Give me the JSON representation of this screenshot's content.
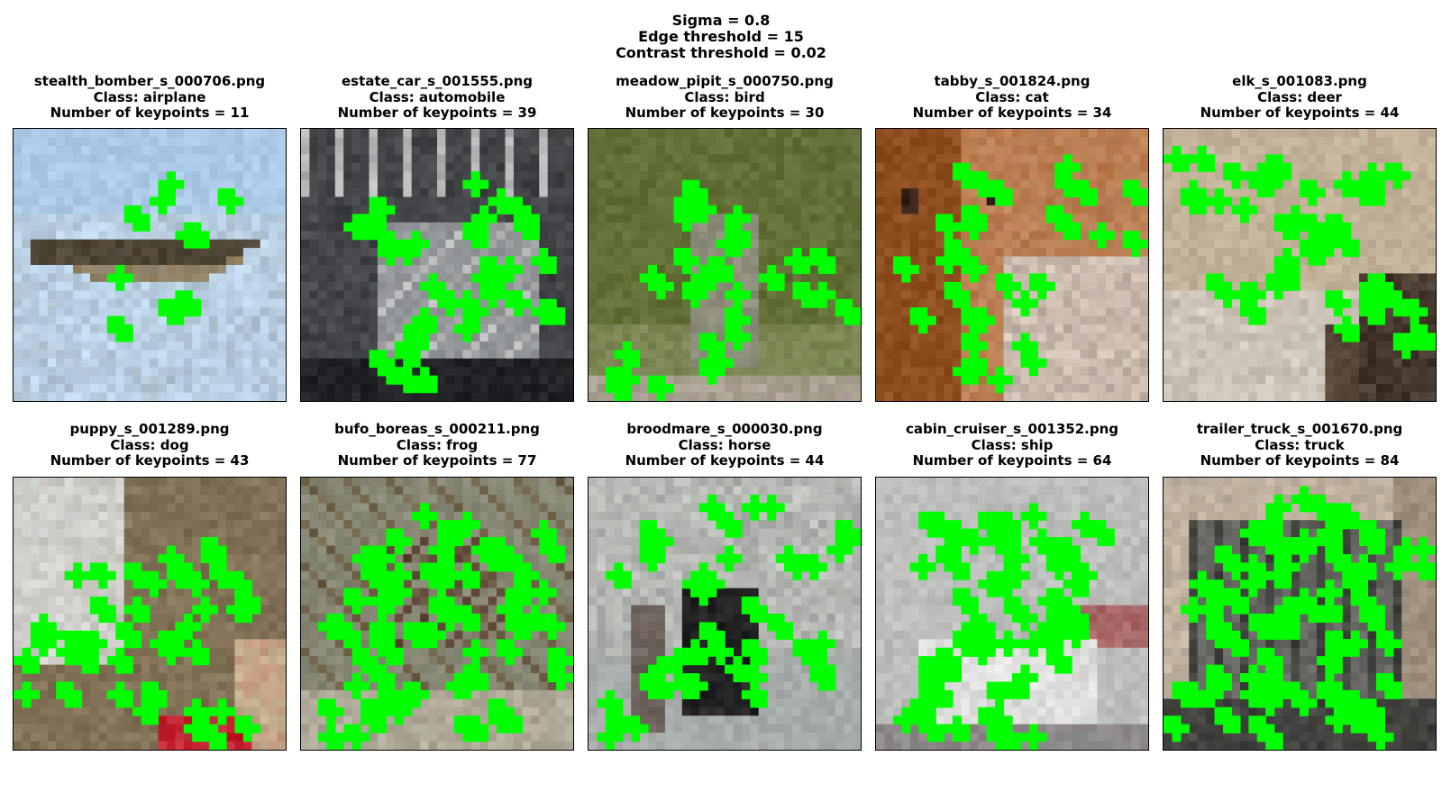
{
  "figure": {
    "sigma_label": "Sigma = 0.8",
    "edge_label": "Edge threshold = 15",
    "contrast_label": "Contrast threshold = 0.02"
  },
  "keypoint_color": "#00ff00",
  "panels": [
    {
      "filename": "stealth_bomber_s_000706.png",
      "class_label": "Class: airplane",
      "keypoints_label": "Number of keypoints = 11",
      "keypoints": 11,
      "scene": "airplane",
      "colors": [
        "#a9c8e6",
        "#c2dbf1",
        "#4a4134",
        "#8c7a58"
      ]
    },
    {
      "filename": "estate_car_s_001555.png",
      "class_label": "Class: automobile",
      "keypoints_label": "Number of keypoints = 39",
      "keypoints": 39,
      "scene": "automobile",
      "colors": [
        "#3b3d40",
        "#8e9194",
        "#c4c6c8",
        "#1e1f22"
      ]
    },
    {
      "filename": "meadow_pipit_s_000750.png",
      "class_label": "Class: bird",
      "keypoints_label": "Number of keypoints = 30",
      "keypoints": 30,
      "scene": "bird",
      "colors": [
        "#5f6d34",
        "#7a8650",
        "#8a8a78",
        "#b0a49a"
      ]
    },
    {
      "filename": "tabby_s_001824.png",
      "class_label": "Class: cat",
      "keypoints_label": "Number of keypoints = 34",
      "keypoints": 34,
      "scene": "cat",
      "colors": [
        "#8a4a1c",
        "#b8784a",
        "#d8c8bc",
        "#2a1c14"
      ]
    },
    {
      "filename": "elk_s_001083.png",
      "class_label": "Class: deer",
      "keypoints_label": "Number of keypoints = 44",
      "keypoints": 44,
      "scene": "deer",
      "colors": [
        "#bfae94",
        "#d8d0c4",
        "#5a4a3c",
        "#3a2c24"
      ]
    },
    {
      "filename": "puppy_s_001289.png",
      "class_label": "Class: dog",
      "keypoints_label": "Number of keypoints = 43",
      "keypoints": 43,
      "scene": "dog",
      "colors": [
        "#d8d8d6",
        "#7a6a50",
        "#c4b494",
        "#c01020"
      ]
    },
    {
      "filename": "bufo_boreas_s_000211.png",
      "class_label": "Class: frog",
      "keypoints_label": "Number of keypoints = 77",
      "keypoints": 77,
      "scene": "frog",
      "colors": [
        "#8a8c7a",
        "#6a5a40",
        "#b8b4a4",
        "#5a4030"
      ]
    },
    {
      "filename": "broodmare_s_000030.png",
      "class_label": "Class: horse",
      "keypoints_label": "Number of keypoints = 44",
      "keypoints": 44,
      "scene": "horse",
      "colors": [
        "#a4aaa8",
        "#c4c6c2",
        "#1c1c1e",
        "#6a5e56"
      ]
    },
    {
      "filename": "cabin_cruiser_s_001352.png",
      "class_label": "Class: ship",
      "keypoints_label": "Number of keypoints = 64",
      "keypoints": 64,
      "scene": "ship",
      "colors": [
        "#b8bab8",
        "#e8e8e6",
        "#8a8c8c",
        "#a86060"
      ]
    },
    {
      "filename": "trailer_truck_s_001670.png",
      "class_label": "Class: truck",
      "keypoints_label": "Number of keypoints = 84",
      "keypoints": 84,
      "scene": "truck",
      "colors": [
        "#c8b8a4",
        "#6a6a66",
        "#3a3c3a",
        "#9a8a78"
      ]
    }
  ]
}
